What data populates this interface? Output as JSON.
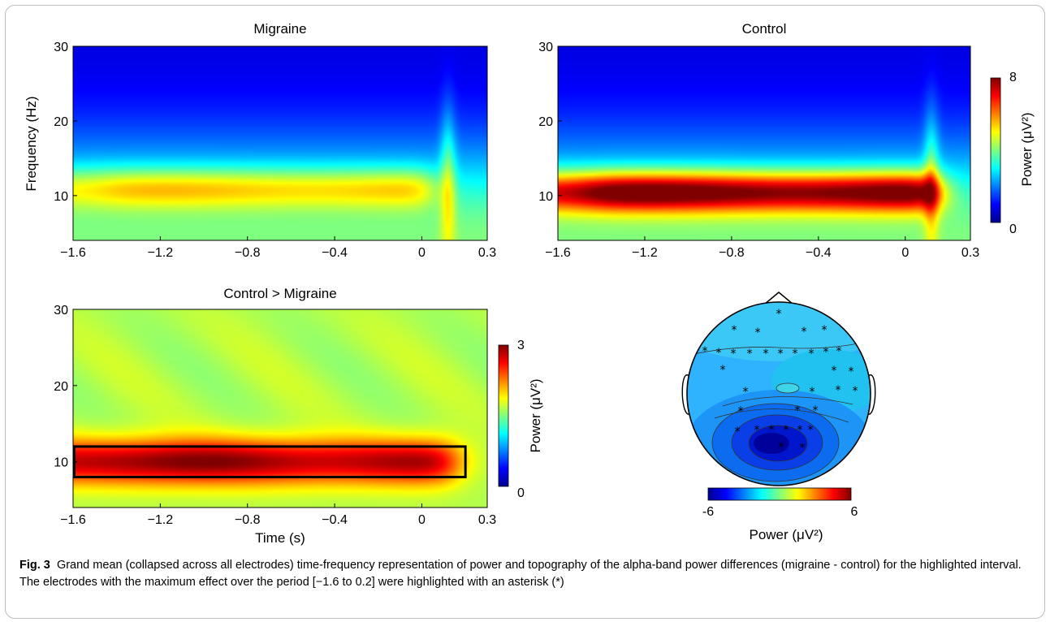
{
  "chart_data": [
    {
      "type": "heatmap",
      "title": "Migraine",
      "xlabel": "",
      "ylabel": "Frequency (Hz)",
      "xlim": [
        -1.6,
        0.3
      ],
      "ylim": [
        4,
        30
      ],
      "xticks": [
        "−1.6",
        "−1.2",
        "−0.8",
        "−0.4",
        "0",
        "0.3"
      ],
      "yticks": [
        "10",
        "20",
        "30"
      ],
      "colormap": "jet",
      "clim": [
        0,
        8
      ],
      "alpha_band": {
        "center_hz": 11,
        "peak_power": 4.8,
        "start_s": -1.6,
        "end_s": 0.05
      },
      "onset_response": {
        "time_s": 0.12,
        "power": 4.5
      }
    },
    {
      "type": "heatmap",
      "title": "Control",
      "xlabel": "",
      "ylabel": "",
      "xlim": [
        -1.6,
        0.3
      ],
      "ylim": [
        4,
        30
      ],
      "xticks": [
        "−1.6",
        "−1.2",
        "−0.8",
        "−0.4",
        "0",
        "0.3"
      ],
      "yticks": [
        "10",
        "20",
        "30"
      ],
      "colormap": "jet",
      "clim": [
        0,
        8
      ],
      "alpha_band": {
        "center_hz": 10.5,
        "peak_power": 7.6,
        "start_s": -1.6,
        "end_s": 0.15
      },
      "onset_response": {
        "time_s": 0.12,
        "power": 4.8
      },
      "colorbar": {
        "label": "Power (μV²)",
        "ticks": [
          "0",
          "8"
        ]
      }
    },
    {
      "type": "heatmap",
      "title": "Control > Migraine",
      "xlabel": "Time (s)",
      "ylabel": "",
      "xlim": [
        -1.6,
        0.3
      ],
      "ylim": [
        4,
        30
      ],
      "xticks": [
        "−1.6",
        "−1.2",
        "−0.8",
        "−0.4",
        "0",
        "0.3"
      ],
      "yticks": [
        "10",
        "20",
        "30"
      ],
      "colormap": "jet",
      "clim": [
        0,
        3
      ],
      "background_power": 1.65,
      "alpha_band": {
        "center_hz": 10,
        "peak_power": 2.9,
        "start_s": -1.6,
        "end_s": 0.15
      },
      "highlight_box": {
        "t_start": -1.6,
        "t_end": 0.2,
        "f_low": 8,
        "f_high": 12
      },
      "colorbar": {
        "label": "Power (μV²)",
        "ticks": [
          "0",
          "3"
        ]
      }
    },
    {
      "type": "topography",
      "colormap": "jet",
      "clim": [
        -6,
        6
      ],
      "colorbar": {
        "label": "Power (μV²)",
        "ticks": [
          "-6",
          "6"
        ]
      },
      "min_location": "occipital"
    }
  ],
  "caption": {
    "label": "Fig. 3",
    "text": "Grand mean (collapsed across all electrodes) time-frequency  representation of power and topography of the alpha-band power differences (migraine - control) for the highlighted interval. The electrodes with the maximum effect over the period [−1.6 to 0.2] were highlighted with an asterisk (*)"
  }
}
